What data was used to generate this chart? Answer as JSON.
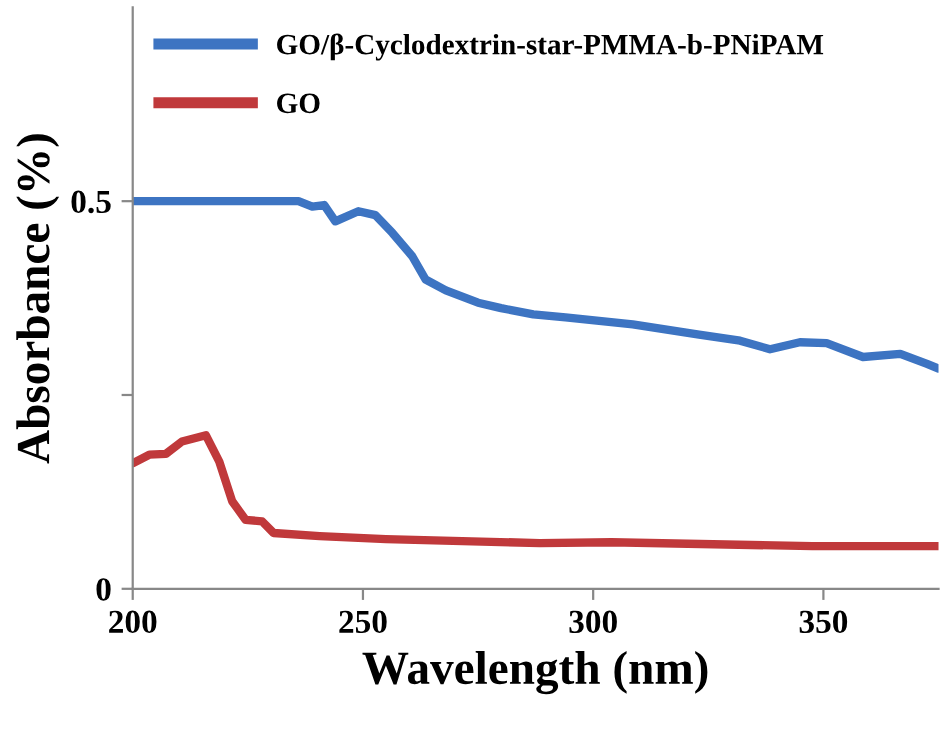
{
  "chart_data": {
    "type": "line",
    "xlabel": "Wavelength (nm)",
    "ylabel": "Absorbance (%)",
    "xlim": [
      200,
      375
    ],
    "xticks": [
      200,
      250,
      300,
      350
    ],
    "ylim": [
      0,
      0.75
    ],
    "yticks": [
      0,
      {
        "value": 0.25,
        "label": null
      },
      0.5
    ],
    "grid": false,
    "legend": "top left",
    "line_style": "solid",
    "marker": "none",
    "series": [
      {
        "name": "GO/β-Cyclodextrin-star-PMMA-b-PNiPAM",
        "color": "#3d74c2",
        "x": [
          200,
          236,
          239,
          241.6,
          244,
          249,
          252.7,
          256.4,
          260.7,
          263.6,
          268,
          275,
          280,
          287,
          294,
          308.6,
          323,
          331.9,
          338.4,
          344.9,
          350.7,
          358.6,
          366.7,
          372.5,
          375
        ],
        "values": [
          0.5,
          0.5,
          0.493,
          0.495,
          0.474,
          0.487,
          0.482,
          0.459,
          0.429,
          0.399,
          0.385,
          0.369,
          0.362,
          0.354,
          0.35,
          0.341,
          0.328,
          0.32,
          0.309,
          0.318,
          0.317,
          0.299,
          0.303,
          0.29,
          0.284
        ]
      },
      {
        "name": "GO",
        "color": "#c0393b",
        "x": [
          200,
          203.6,
          207.2,
          210.7,
          215.9,
          218.8,
          221.6,
          224.5,
          228.1,
          230.6,
          240.6,
          255,
          288.4,
          304,
          347.6,
          375
        ],
        "values": [
          0.162,
          0.173,
          0.174,
          0.19,
          0.198,
          0.164,
          0.113,
          0.089,
          0.087,
          0.072,
          0.068,
          0.064,
          0.059,
          0.06,
          0.055,
          0.055
        ]
      }
    ]
  }
}
